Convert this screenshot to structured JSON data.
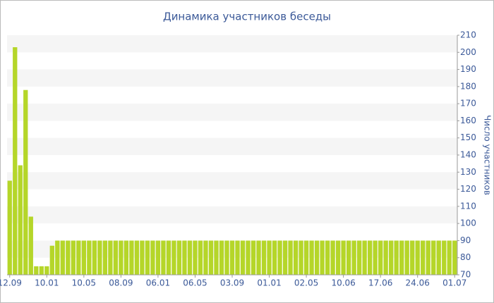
{
  "chart_data": {
    "type": "bar",
    "title": "Динамика участников беседы",
    "y_axis_label": "Число участников",
    "categories": [
      "12.09",
      null,
      null,
      null,
      null,
      null,
      null,
      "10.01",
      null,
      null,
      null,
      null,
      null,
      null,
      "10.05",
      null,
      null,
      null,
      null,
      null,
      null,
      "08.09",
      null,
      null,
      null,
      null,
      null,
      null,
      "06.01",
      null,
      null,
      null,
      null,
      null,
      null,
      "06.05",
      null,
      null,
      null,
      null,
      null,
      null,
      "03.09",
      null,
      null,
      null,
      null,
      null,
      null,
      "01.01",
      null,
      null,
      null,
      null,
      null,
      null,
      "02.05",
      null,
      null,
      null,
      null,
      null,
      null,
      "10.06",
      null,
      null,
      null,
      null,
      null,
      null,
      "17.06",
      null,
      null,
      null,
      null,
      null,
      null,
      "24.06",
      null,
      null,
      null,
      null,
      null,
      null,
      "01.07"
    ],
    "values": [
      125,
      203,
      134,
      178,
      104,
      75,
      75,
      75,
      87,
      90,
      90,
      90,
      90,
      90,
      90,
      90,
      90,
      90,
      90,
      90,
      90,
      90,
      90,
      90,
      90,
      90,
      90,
      90,
      90,
      90,
      90,
      90,
      90,
      90,
      90,
      90,
      90,
      90,
      90,
      90,
      90,
      90,
      90,
      90,
      90,
      90,
      90,
      90,
      90,
      90,
      90,
      90,
      90,
      90,
      90,
      90,
      90,
      90,
      90,
      90,
      90,
      90,
      90,
      90,
      90,
      90,
      90,
      90,
      90,
      90,
      90,
      90,
      90,
      90,
      90,
      90,
      90,
      90,
      90,
      90,
      90,
      90,
      90,
      90,
      90
    ],
    "color": "#b5d629",
    "ylim": [
      70,
      210
    ],
    "yticks": [
      70,
      80,
      90,
      100,
      110,
      120,
      130,
      140,
      150,
      160,
      170,
      180,
      190,
      200,
      210
    ],
    "grid": true
  }
}
